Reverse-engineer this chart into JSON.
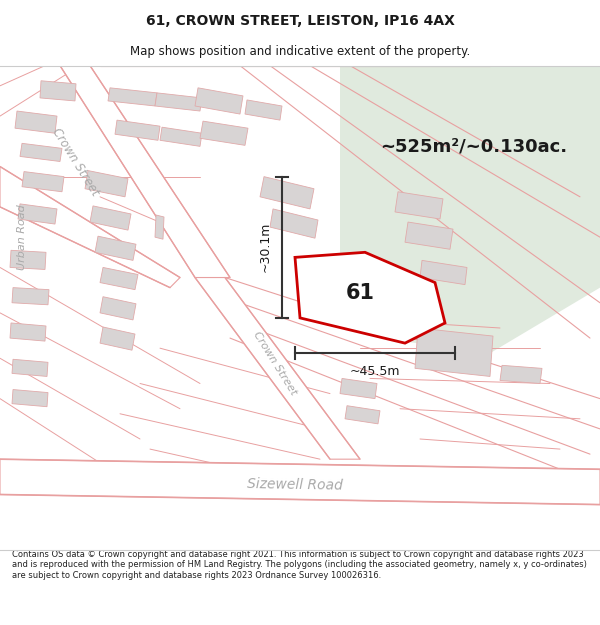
{
  "title": "61, CROWN STREET, LEISTON, IP16 4AX",
  "subtitle": "Map shows position and indicative extent of the property.",
  "area_text": "~525m²/~0.130ac.",
  "label_61": "61",
  "dim_vertical": "~30.1m",
  "dim_horizontal": "~45.5m",
  "footer": "Contains OS data © Crown copyright and database right 2021. This information is subject to Crown copyright and database rights 2023 and is reproduced with the permission of HM Land Registry. The polygons (including the associated geometry, namely x, y co-ordinates) are subject to Crown copyright and database rights 2023 Ordnance Survey 100026316.",
  "bg_color": "#f8f5f5",
  "street_line_color": "#e8a0a0",
  "building_fill": "#d8d4d4",
  "building_edge": "#e0aaaa",
  "green_color": "#e0eade",
  "property_color": "#cc0000",
  "dim_color": "#333333",
  "road_label_color": "#aaaaaa",
  "title_fontsize": 10,
  "subtitle_fontsize": 8.5,
  "footer_fontsize": 6.0
}
